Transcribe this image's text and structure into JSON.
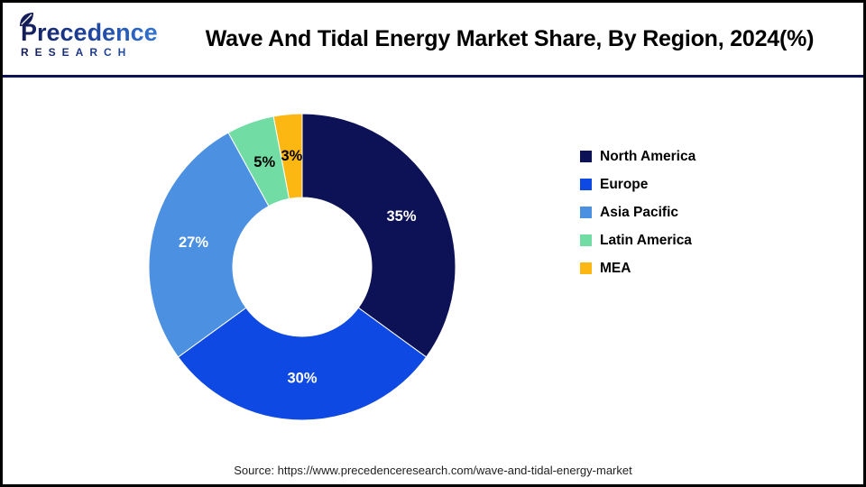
{
  "header": {
    "logo": {
      "name": "Precedence",
      "subtitle": "RESEARCH",
      "leaf_icon_color": "#131c56"
    },
    "title": "Wave And Tidal Energy Market Share, By Region, 2024(%)"
  },
  "chart_data": {
    "type": "pie",
    "subtype": "donut",
    "title": "Wave And Tidal Energy Market Share, By Region, 2024(%)",
    "unit": "%",
    "legend_position": "right",
    "direction": "clockwise",
    "start_angle_deg": 0,
    "donut_hole_ratio": 0.45,
    "series": [
      {
        "name": "North America",
        "value": 35,
        "color": "#0d1155",
        "label_color": "#ffffff"
      },
      {
        "name": "Europe",
        "value": 30,
        "color": "#0f49e3",
        "label_color": "#ffffff"
      },
      {
        "name": "Asia Pacific",
        "value": 27,
        "color": "#4c90e2",
        "label_color": "#ffffff"
      },
      {
        "name": "Latin America",
        "value": 5,
        "color": "#71dca4",
        "label_color": "#000000"
      },
      {
        "name": "MEA",
        "value": 3,
        "color": "#fcb713",
        "label_color": "#000000"
      }
    ]
  },
  "footer": {
    "source": "Source: https://www.precedenceresearch.com/wave-and-tidal-energy-market"
  },
  "frame": {
    "border_color": "#000000",
    "divider_color": "#0d1155"
  }
}
